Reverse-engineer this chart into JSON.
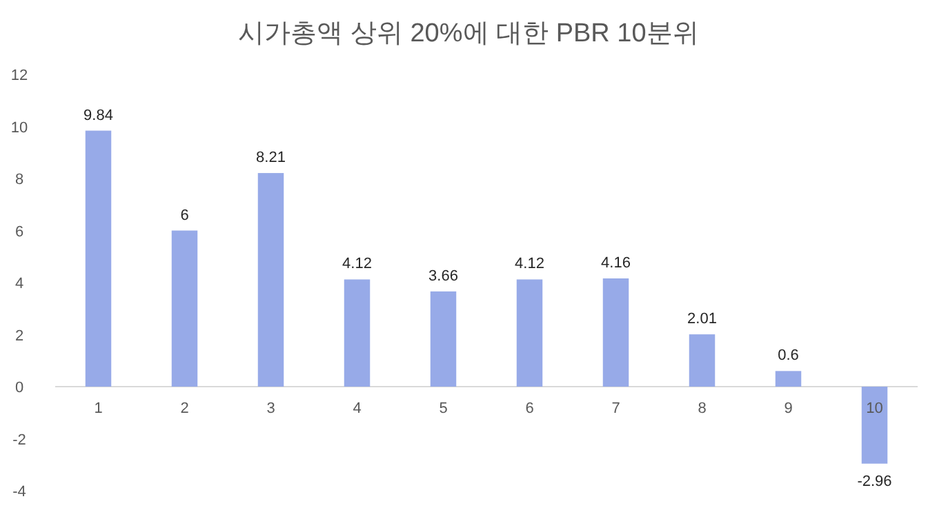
{
  "chart_data": {
    "type": "bar",
    "title": "시가총액 상위 20%에 대한 PBR 10분위",
    "categories": [
      "1",
      "2",
      "3",
      "4",
      "5",
      "6",
      "7",
      "8",
      "9",
      "10"
    ],
    "values": [
      9.84,
      6,
      8.21,
      4.12,
      3.66,
      4.12,
      4.16,
      2.01,
      0.6,
      -2.96
    ],
    "color": "#97aae8",
    "ylim": [
      -4,
      12
    ],
    "yticks": [
      -4,
      -2,
      0,
      2,
      4,
      6,
      8,
      10,
      12
    ],
    "grid": false,
    "data_labels": true
  }
}
